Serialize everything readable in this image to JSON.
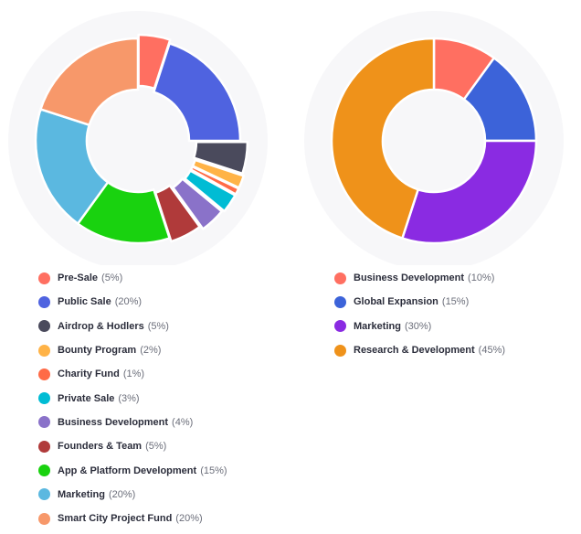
{
  "chart_data": [
    {
      "type": "pie",
      "series": [
        {
          "label": "Pre-Sale",
          "percent_text": "(5%)",
          "value": 5,
          "color": "#ff6f61"
        },
        {
          "label": "Public Sale",
          "percent_text": "(20%)",
          "value": 20,
          "color": "#4f63e0"
        },
        {
          "label": "Airdrop & Hodlers",
          "percent_text": "(5%)",
          "value": 5,
          "color": "#4a4a5c"
        },
        {
          "label": "Bounty Program",
          "percent_text": "(2%)",
          "value": 2,
          "color": "#ffb347"
        },
        {
          "label": "Charity Fund",
          "percent_text": "(1%)",
          "value": 1,
          "color": "#ff6b47"
        },
        {
          "label": "Private Sale",
          "percent_text": "(3%)",
          "value": 3,
          "color": "#00bcd4"
        },
        {
          "label": "Business Development",
          "percent_text": "(4%)",
          "value": 4,
          "color": "#8a72c9"
        },
        {
          "label": "Founders & Team",
          "percent_text": "(5%)",
          "value": 5,
          "color": "#b03a3a"
        },
        {
          "label": "App & Platform Development",
          "percent_text": "(15%)",
          "value": 15,
          "color": "#19d20f"
        },
        {
          "label": "Marketing",
          "percent_text": "(20%)",
          "value": 20,
          "color": "#5bb8e0"
        },
        {
          "label": "Smart City Project Fund",
          "percent_text": "(20%)",
          "value": 20,
          "color": "#f7986a"
        }
      ]
    },
    {
      "type": "pie",
      "series": [
        {
          "label": "Business Development",
          "percent_text": "(10%)",
          "value": 10,
          "color": "#ff6f61"
        },
        {
          "label": "Global Expansion",
          "percent_text": "(15%)",
          "value": 15,
          "color": "#3c63d9"
        },
        {
          "label": "Marketing",
          "percent_text": "(30%)",
          "value": 30,
          "color": "#8a2be2"
        },
        {
          "label": "Research & Development",
          "percent_text": "(45%)",
          "value": 45,
          "color": "#ef921a"
        }
      ]
    }
  ]
}
